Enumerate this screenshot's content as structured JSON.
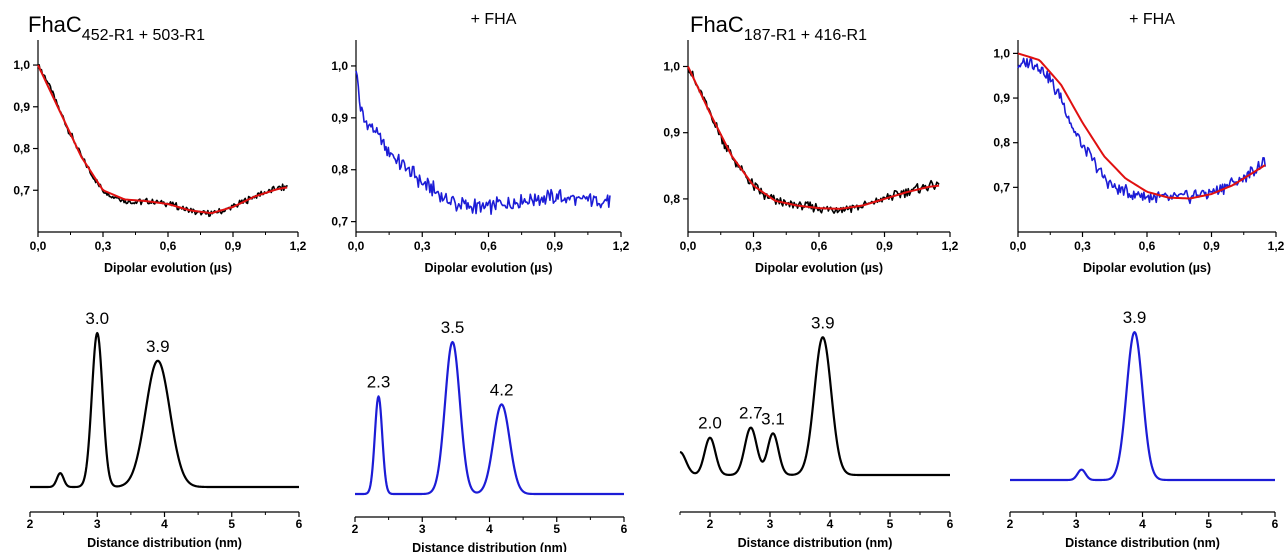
{
  "colors": {
    "black": "#000000",
    "blue": "#1c1cd6",
    "red": "#e01010"
  },
  "chart_data": [
    {
      "type": "line",
      "title_main": "FhaC",
      "title_sub": "452-R1",
      "title_rest": " + 503-R1",
      "xlabel": "Dipolar evolution (µs)",
      "xlim": [
        0,
        1.2
      ],
      "ylim": [
        0.6,
        1.06
      ],
      "xticks": [
        "0,0",
        "0,3",
        "0,6",
        "0,9",
        "1,2"
      ],
      "yticks": [
        "0,7",
        "0,8",
        "0,9",
        "1,0"
      ],
      "series": [
        {
          "role": "data",
          "color": "black",
          "x": [
            0,
            0.05,
            0.1,
            0.15,
            0.2,
            0.25,
            0.3,
            0.35,
            0.4,
            0.45,
            0.5,
            0.55,
            0.6,
            0.65,
            0.7,
            0.75,
            0.8,
            0.85,
            0.9,
            0.95,
            1.0,
            1.05,
            1.1,
            1.15
          ],
          "y": [
            1.0,
            0.955,
            0.89,
            0.835,
            0.78,
            0.735,
            0.7,
            0.685,
            0.675,
            0.672,
            0.673,
            0.672,
            0.668,
            0.66,
            0.652,
            0.645,
            0.645,
            0.65,
            0.66,
            0.672,
            0.685,
            0.695,
            0.703,
            0.708
          ]
        },
        {
          "role": "fit",
          "color": "red",
          "x": [
            0,
            0.1,
            0.2,
            0.3,
            0.4,
            0.5,
            0.6,
            0.7,
            0.8,
            0.9,
            1.0,
            1.1,
            1.15
          ],
          "y": [
            1.0,
            0.89,
            0.78,
            0.7,
            0.678,
            0.674,
            0.667,
            0.652,
            0.645,
            0.66,
            0.685,
            0.702,
            0.707
          ]
        }
      ]
    },
    {
      "type": "line",
      "title_main": "+ FHA",
      "title_sub": "",
      "title_rest": "",
      "xlabel": "Dipolar evolution (µs)",
      "xlim": [
        0,
        1.2
      ],
      "ylim": [
        0.68,
        1.05
      ],
      "xticks": [
        "0,0",
        "0,3",
        "0,6",
        "0,9",
        "1,2"
      ],
      "yticks": [
        "0,7",
        "0,8",
        "0,9",
        "1,0"
      ],
      "series": [
        {
          "role": "data",
          "color": "blue",
          "x": [
            0,
            0.01,
            0.02,
            0.04,
            0.06,
            0.08,
            0.1,
            0.15,
            0.2,
            0.25,
            0.3,
            0.35,
            0.4,
            0.45,
            0.5,
            0.55,
            0.6,
            0.65,
            0.7,
            0.75,
            0.8,
            0.85,
            0.9,
            0.95,
            1.0,
            1.05,
            1.1,
            1.15
          ],
          "y": [
            1.0,
            0.96,
            0.92,
            0.89,
            0.885,
            0.88,
            0.865,
            0.835,
            0.81,
            0.795,
            0.775,
            0.762,
            0.745,
            0.735,
            0.73,
            0.728,
            0.73,
            0.732,
            0.735,
            0.74,
            0.742,
            0.745,
            0.748,
            0.745,
            0.742,
            0.745,
            0.74,
            0.738
          ]
        }
      ]
    },
    {
      "type": "line",
      "title_main": "FhaC",
      "title_sub": "187-R1",
      "title_rest": " + 416-R1",
      "xlabel": "Dipolar evolution (µs)",
      "xlim": [
        0,
        1.2
      ],
      "ylim": [
        0.75,
        1.04
      ],
      "xticks": [
        "0,0",
        "0,3",
        "0,6",
        "0,9",
        "1,2"
      ],
      "yticks": [
        "0,8",
        "0,9",
        "1,0"
      ],
      "series": [
        {
          "role": "data",
          "color": "black",
          "x": [
            0,
            0.05,
            0.1,
            0.15,
            0.2,
            0.25,
            0.3,
            0.35,
            0.4,
            0.45,
            0.5,
            0.55,
            0.6,
            0.65,
            0.7,
            0.75,
            0.8,
            0.85,
            0.9,
            0.95,
            1.0,
            1.05,
            1.1,
            1.15
          ],
          "y": [
            1.0,
            0.965,
            0.93,
            0.895,
            0.865,
            0.84,
            0.82,
            0.805,
            0.797,
            0.792,
            0.79,
            0.788,
            0.785,
            0.785,
            0.785,
            0.787,
            0.79,
            0.795,
            0.8,
            0.805,
            0.81,
            0.815,
            0.82,
            0.82
          ]
        },
        {
          "role": "fit",
          "color": "red",
          "x": [
            0,
            0.1,
            0.2,
            0.3,
            0.4,
            0.5,
            0.6,
            0.7,
            0.8,
            0.9,
            1.0,
            1.1,
            1.15
          ],
          "y": [
            1.0,
            0.93,
            0.865,
            0.82,
            0.797,
            0.79,
            0.786,
            0.785,
            0.79,
            0.8,
            0.81,
            0.818,
            0.82
          ]
        }
      ]
    },
    {
      "type": "line",
      "title_main": "+ FHA",
      "title_sub": "",
      "title_rest": "",
      "xlabel": "Dipolar evolution (µs)",
      "xlim": [
        0,
        1.2
      ],
      "ylim": [
        0.6,
        1.03
      ],
      "xticks": [
        "0,0",
        "0,3",
        "0,6",
        "0,9",
        "1,2"
      ],
      "yticks": [
        "0,7",
        "0,8",
        "0,9",
        "1,0"
      ],
      "series": [
        {
          "role": "data",
          "color": "blue",
          "x": [
            0,
            0.05,
            0.1,
            0.15,
            0.2,
            0.25,
            0.3,
            0.35,
            0.4,
            0.45,
            0.5,
            0.55,
            0.6,
            0.65,
            0.7,
            0.75,
            0.8,
            0.85,
            0.9,
            0.95,
            1.0,
            1.05,
            1.1,
            1.15
          ],
          "y": [
            0.97,
            0.98,
            0.97,
            0.94,
            0.9,
            0.84,
            0.79,
            0.76,
            0.72,
            0.7,
            0.69,
            0.685,
            0.68,
            0.68,
            0.675,
            0.68,
            0.68,
            0.685,
            0.69,
            0.7,
            0.71,
            0.72,
            0.74,
            0.76
          ]
        },
        {
          "role": "fit",
          "color": "red",
          "x": [
            0,
            0.1,
            0.2,
            0.3,
            0.4,
            0.5,
            0.6,
            0.7,
            0.8,
            0.9,
            1.0,
            1.1,
            1.15
          ],
          "y": [
            1.0,
            0.985,
            0.93,
            0.845,
            0.77,
            0.72,
            0.69,
            0.677,
            0.675,
            0.685,
            0.705,
            0.735,
            0.75
          ]
        }
      ]
    },
    {
      "type": "line",
      "xlabel": "Distance distribution (nm)",
      "xlim": [
        2,
        6
      ],
      "ylim": [
        0,
        1.15
      ],
      "xticks": [
        "2",
        "3",
        "4",
        "5",
        "6"
      ],
      "color": "black",
      "baseline": 0.0,
      "peaks": [
        {
          "center": 2.45,
          "height": 0.09,
          "width": 0.05,
          "label": ""
        },
        {
          "center": 3.0,
          "height": 1.0,
          "width": 0.08,
          "label": "3.0"
        },
        {
          "center": 3.9,
          "height": 0.82,
          "width": 0.18,
          "label": "3.9"
        }
      ]
    },
    {
      "type": "line",
      "xlabel": "Distance distribution (nm)",
      "xlim": [
        2,
        6
      ],
      "ylim": [
        0,
        1.15
      ],
      "xticks": [
        "2",
        "3",
        "4",
        "5",
        "6"
      ],
      "color": "blue",
      "baseline": 0.0,
      "peaks": [
        {
          "center": 2.35,
          "height": 0.61,
          "width": 0.055,
          "label": "2.3"
        },
        {
          "center": 3.45,
          "height": 0.95,
          "width": 0.11,
          "label": "3.5"
        },
        {
          "center": 4.18,
          "height": 0.56,
          "width": 0.12,
          "label": "4.2"
        }
      ]
    },
    {
      "type": "line",
      "xlabel": "Distance distribution (nm)",
      "xlim": [
        1.5,
        6
      ],
      "ylim": [
        0,
        1.15
      ],
      "xticks": [
        "2",
        "3",
        "4",
        "5",
        "6"
      ],
      "color": "black",
      "baseline": 0.0,
      "peaks": [
        {
          "center": 1.5,
          "height": 0.16,
          "width": 0.1,
          "label": ""
        },
        {
          "center": 2.0,
          "height": 0.26,
          "width": 0.09,
          "label": "2.0"
        },
        {
          "center": 2.68,
          "height": 0.33,
          "width": 0.1,
          "label": "2.7"
        },
        {
          "center": 3.05,
          "height": 0.29,
          "width": 0.09,
          "label": "3.1"
        },
        {
          "center": 3.88,
          "height": 0.96,
          "width": 0.14,
          "label": "3.9"
        }
      ]
    },
    {
      "type": "line",
      "xlabel": "Distance distribution (nm)",
      "xlim": [
        2,
        6
      ],
      "ylim": [
        0,
        1.15
      ],
      "xticks": [
        "2",
        "3",
        "4",
        "5",
        "6"
      ],
      "color": "blue",
      "baseline": 0.0,
      "peaks": [
        {
          "center": 3.08,
          "height": 0.07,
          "width": 0.06,
          "label": ""
        },
        {
          "center": 3.88,
          "height": 1.0,
          "width": 0.12,
          "label": "3.9"
        }
      ]
    }
  ]
}
